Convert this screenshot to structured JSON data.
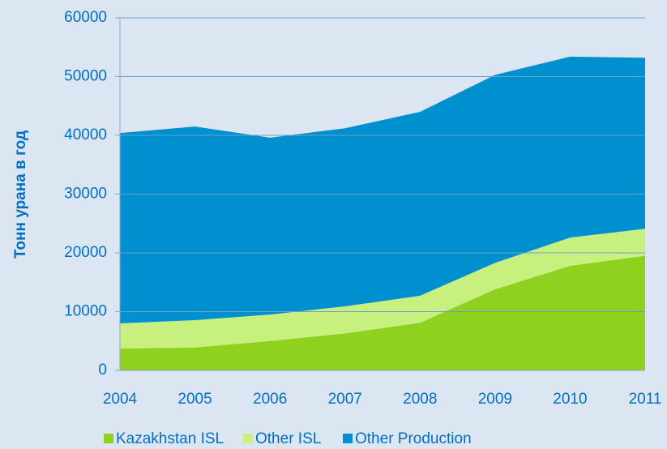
{
  "chart_data": {
    "type": "stacked_area",
    "y_label": "Тонн урана в год",
    "categories": [
      "2004",
      "2005",
      "2006",
      "2007",
      "2008",
      "2009",
      "2010",
      "2011"
    ],
    "series": [
      {
        "name": "Kazakhstan ISL",
        "color": "#8ed21f",
        "values": [
          3700,
          3900,
          5000,
          6300,
          8100,
          13800,
          17800,
          19500
        ]
      },
      {
        "name": "Other ISL",
        "color": "#c7f07e",
        "values": [
          4300,
          4650,
          4500,
          4600,
          4600,
          4500,
          4800,
          4600
        ]
      },
      {
        "name": "Other Production",
        "color": "#0090d0",
        "values": [
          32400,
          32950,
          30100,
          30300,
          31300,
          32000,
          30800,
          29100
        ]
      }
    ],
    "ylim": [
      0,
      60000
    ],
    "yticks": [
      0,
      10000,
      20000,
      30000,
      40000,
      50000,
      60000
    ],
    "grid": true,
    "legend": "bottom"
  }
}
